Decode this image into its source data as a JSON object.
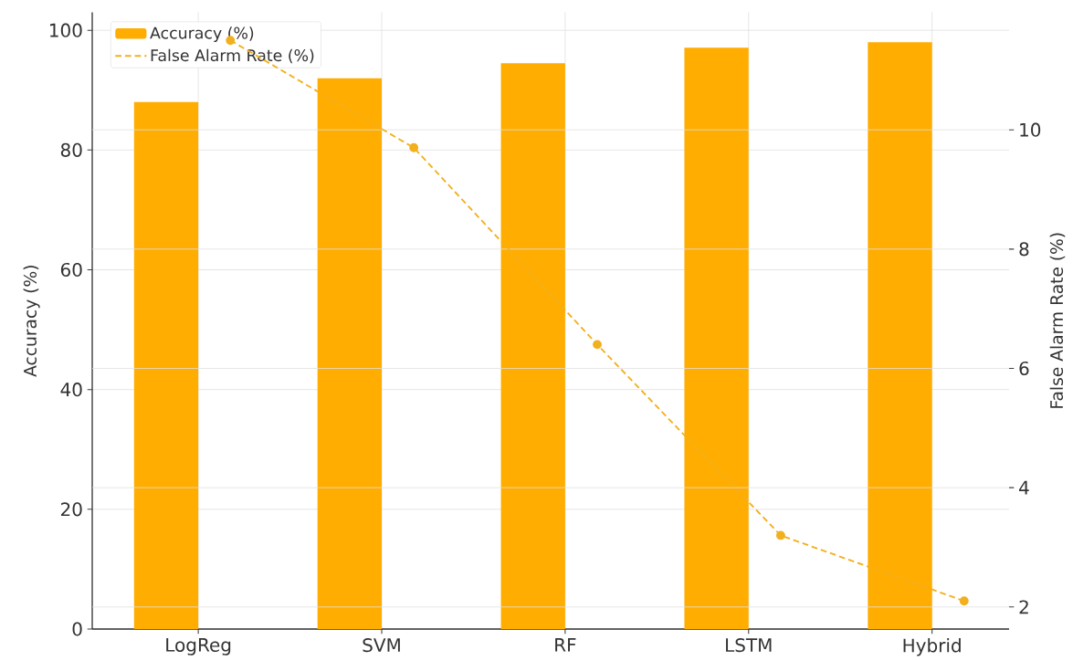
{
  "chart_data": {
    "type": "bar",
    "categories": [
      "LogReg",
      "SVM",
      "RF",
      "LSTM",
      "Hybrid"
    ],
    "ylabel": "Accuracy (%)",
    "y2label": "False Alarm Rate (%)",
    "ylim": [
      0,
      103
    ],
    "yticks": [
      0,
      20,
      40,
      60,
      80,
      100
    ],
    "y2lim": [
      1.63,
      11.97
    ],
    "y2ticks": [
      2,
      4,
      6,
      8,
      10
    ],
    "grid": true,
    "legend": "top left",
    "series": [
      {
        "name": "Accuracy (%)",
        "color": "#ffad00",
        "values": [
          88,
          92,
          94.5,
          97.1,
          98
        ]
      },
      {
        "name": "False Alarm Rate (%)",
        "type": "line",
        "axis": "y2",
        "color": "#f2b01e",
        "marker": "circle",
        "line_style": "dashed",
        "values": [
          11.5,
          9.7,
          6.4,
          3.2,
          2.1
        ]
      }
    ]
  }
}
